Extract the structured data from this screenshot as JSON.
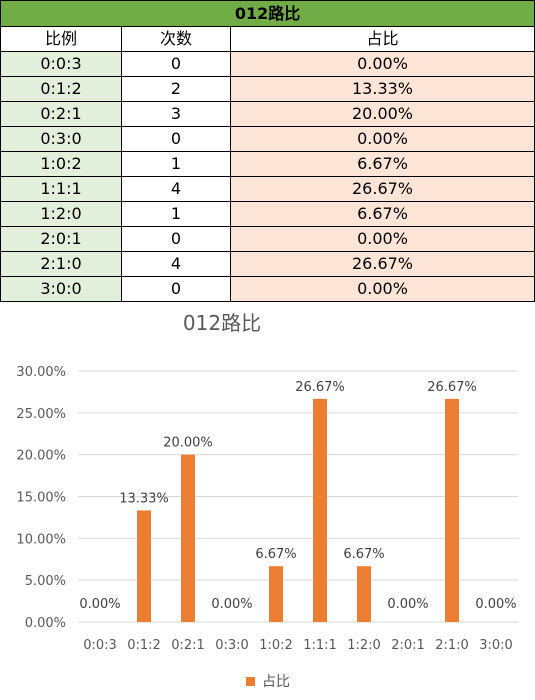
{
  "table": {
    "title": "012路比",
    "headers": [
      "比例",
      "次数",
      "占比"
    ],
    "rows": [
      {
        "ratio": "0:0:3",
        "count": "0",
        "pct": "0.00%"
      },
      {
        "ratio": "0:1:2",
        "count": "2",
        "pct": "13.33%"
      },
      {
        "ratio": "0:2:1",
        "count": "3",
        "pct": "20.00%"
      },
      {
        "ratio": "0:3:0",
        "count": "0",
        "pct": "0.00%"
      },
      {
        "ratio": "1:0:2",
        "count": "1",
        "pct": "6.67%"
      },
      {
        "ratio": "1:1:1",
        "count": "4",
        "pct": "26.67%"
      },
      {
        "ratio": "1:2:0",
        "count": "1",
        "pct": "6.67%"
      },
      {
        "ratio": "2:0:1",
        "count": "0",
        "pct": "0.00%"
      },
      {
        "ratio": "2:1:0",
        "count": "4",
        "pct": "26.67%"
      },
      {
        "ratio": "3:0:0",
        "count": "0",
        "pct": "0.00%"
      }
    ]
  },
  "colors": {
    "title_bg": "#70ad47",
    "ratio_bg": "#e2efda",
    "pct_bg": "#fce4d6",
    "bar": "#ed7d31"
  },
  "chart_data": {
    "type": "bar",
    "title": "012路比",
    "categories": [
      "0:0:3",
      "0:1:2",
      "0:2:1",
      "0:3:0",
      "1:0:2",
      "1:1:1",
      "1:2:0",
      "2:0:1",
      "2:1:0",
      "3:0:0"
    ],
    "series": [
      {
        "name": "占比",
        "values": [
          0,
          13.33,
          20.0,
          0,
          6.67,
          26.67,
          6.67,
          0,
          26.67,
          0
        ]
      }
    ],
    "data_labels": [
      "0.00%",
      "13.33%",
      "20.00%",
      "0.00%",
      "6.67%",
      "26.67%",
      "6.67%",
      "0.00%",
      "26.67%",
      "0.00%"
    ],
    "yticks": [
      "0.00%",
      "5.00%",
      "10.00%",
      "15.00%",
      "20.00%",
      "25.00%",
      "30.00%"
    ],
    "ylim": [
      0,
      30
    ],
    "grid": true,
    "legend": "bottom"
  }
}
